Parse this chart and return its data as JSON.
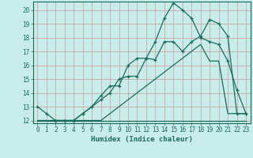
{
  "xlabel": "Humidex (Indice chaleur)",
  "background_color": "#c8ece9",
  "grid_color": "#c8a8a8",
  "line_color": "#1a6b5a",
  "xlim": [
    -0.5,
    23.5
  ],
  "ylim": [
    11.8,
    20.6
  ],
  "yticks": [
    12,
    13,
    14,
    15,
    16,
    17,
    18,
    19,
    20
  ],
  "xticks": [
    0,
    1,
    2,
    3,
    4,
    5,
    6,
    7,
    8,
    9,
    10,
    11,
    12,
    13,
    14,
    15,
    16,
    17,
    18,
    19,
    20,
    21,
    22,
    23
  ],
  "line_flat_x": [
    0,
    1,
    2,
    3,
    4,
    5,
    6,
    7,
    8,
    9,
    10,
    11,
    12,
    13,
    14,
    15,
    16,
    17,
    18,
    19,
    20,
    21,
    22,
    23
  ],
  "line_flat_y": [
    12,
    12,
    12,
    12,
    12,
    12,
    12,
    12,
    12,
    12,
    12,
    12,
    12,
    12,
    12,
    12,
    12,
    12,
    12,
    12,
    12,
    12,
    12,
    12
  ],
  "line_low_x": [
    0,
    1,
    2,
    3,
    4,
    5,
    6,
    7,
    8,
    9,
    10,
    11,
    12,
    13,
    14,
    15,
    16,
    17,
    18,
    19,
    20,
    21,
    22,
    23
  ],
  "line_low_y": [
    12,
    12,
    12,
    12,
    12,
    12,
    12,
    12,
    12.5,
    13.0,
    13.5,
    14.0,
    14.5,
    15.0,
    15.5,
    16.0,
    16.5,
    17.0,
    17.5,
    16.3,
    16.3,
    12.5,
    12.5,
    12.5
  ],
  "line_mid_x": [
    0,
    1,
    2,
    3,
    4,
    5,
    6,
    7,
    8,
    9,
    10,
    11,
    12,
    13,
    14,
    15,
    16,
    17,
    18,
    19,
    20,
    21,
    22,
    23
  ],
  "line_mid_y": [
    13.0,
    12.5,
    12.0,
    12.0,
    12.0,
    12.5,
    13.0,
    13.5,
    14.0,
    15.0,
    15.2,
    15.2,
    16.5,
    16.4,
    17.7,
    17.7,
    17.0,
    17.7,
    18.1,
    19.3,
    19.0,
    18.1,
    12.5,
    12.5
  ],
  "line_high_x": [
    2,
    3,
    4,
    5,
    6,
    7,
    8,
    9,
    10,
    11,
    12,
    13,
    14,
    15,
    16,
    17,
    18,
    19,
    20,
    21,
    22,
    23
  ],
  "line_high_y": [
    12,
    12,
    12,
    12.5,
    13.0,
    13.8,
    14.5,
    14.5,
    16.0,
    16.5,
    16.5,
    17.7,
    19.4,
    20.5,
    20.0,
    19.4,
    18.0,
    17.7,
    17.5,
    16.3,
    14.2,
    12.5
  ]
}
